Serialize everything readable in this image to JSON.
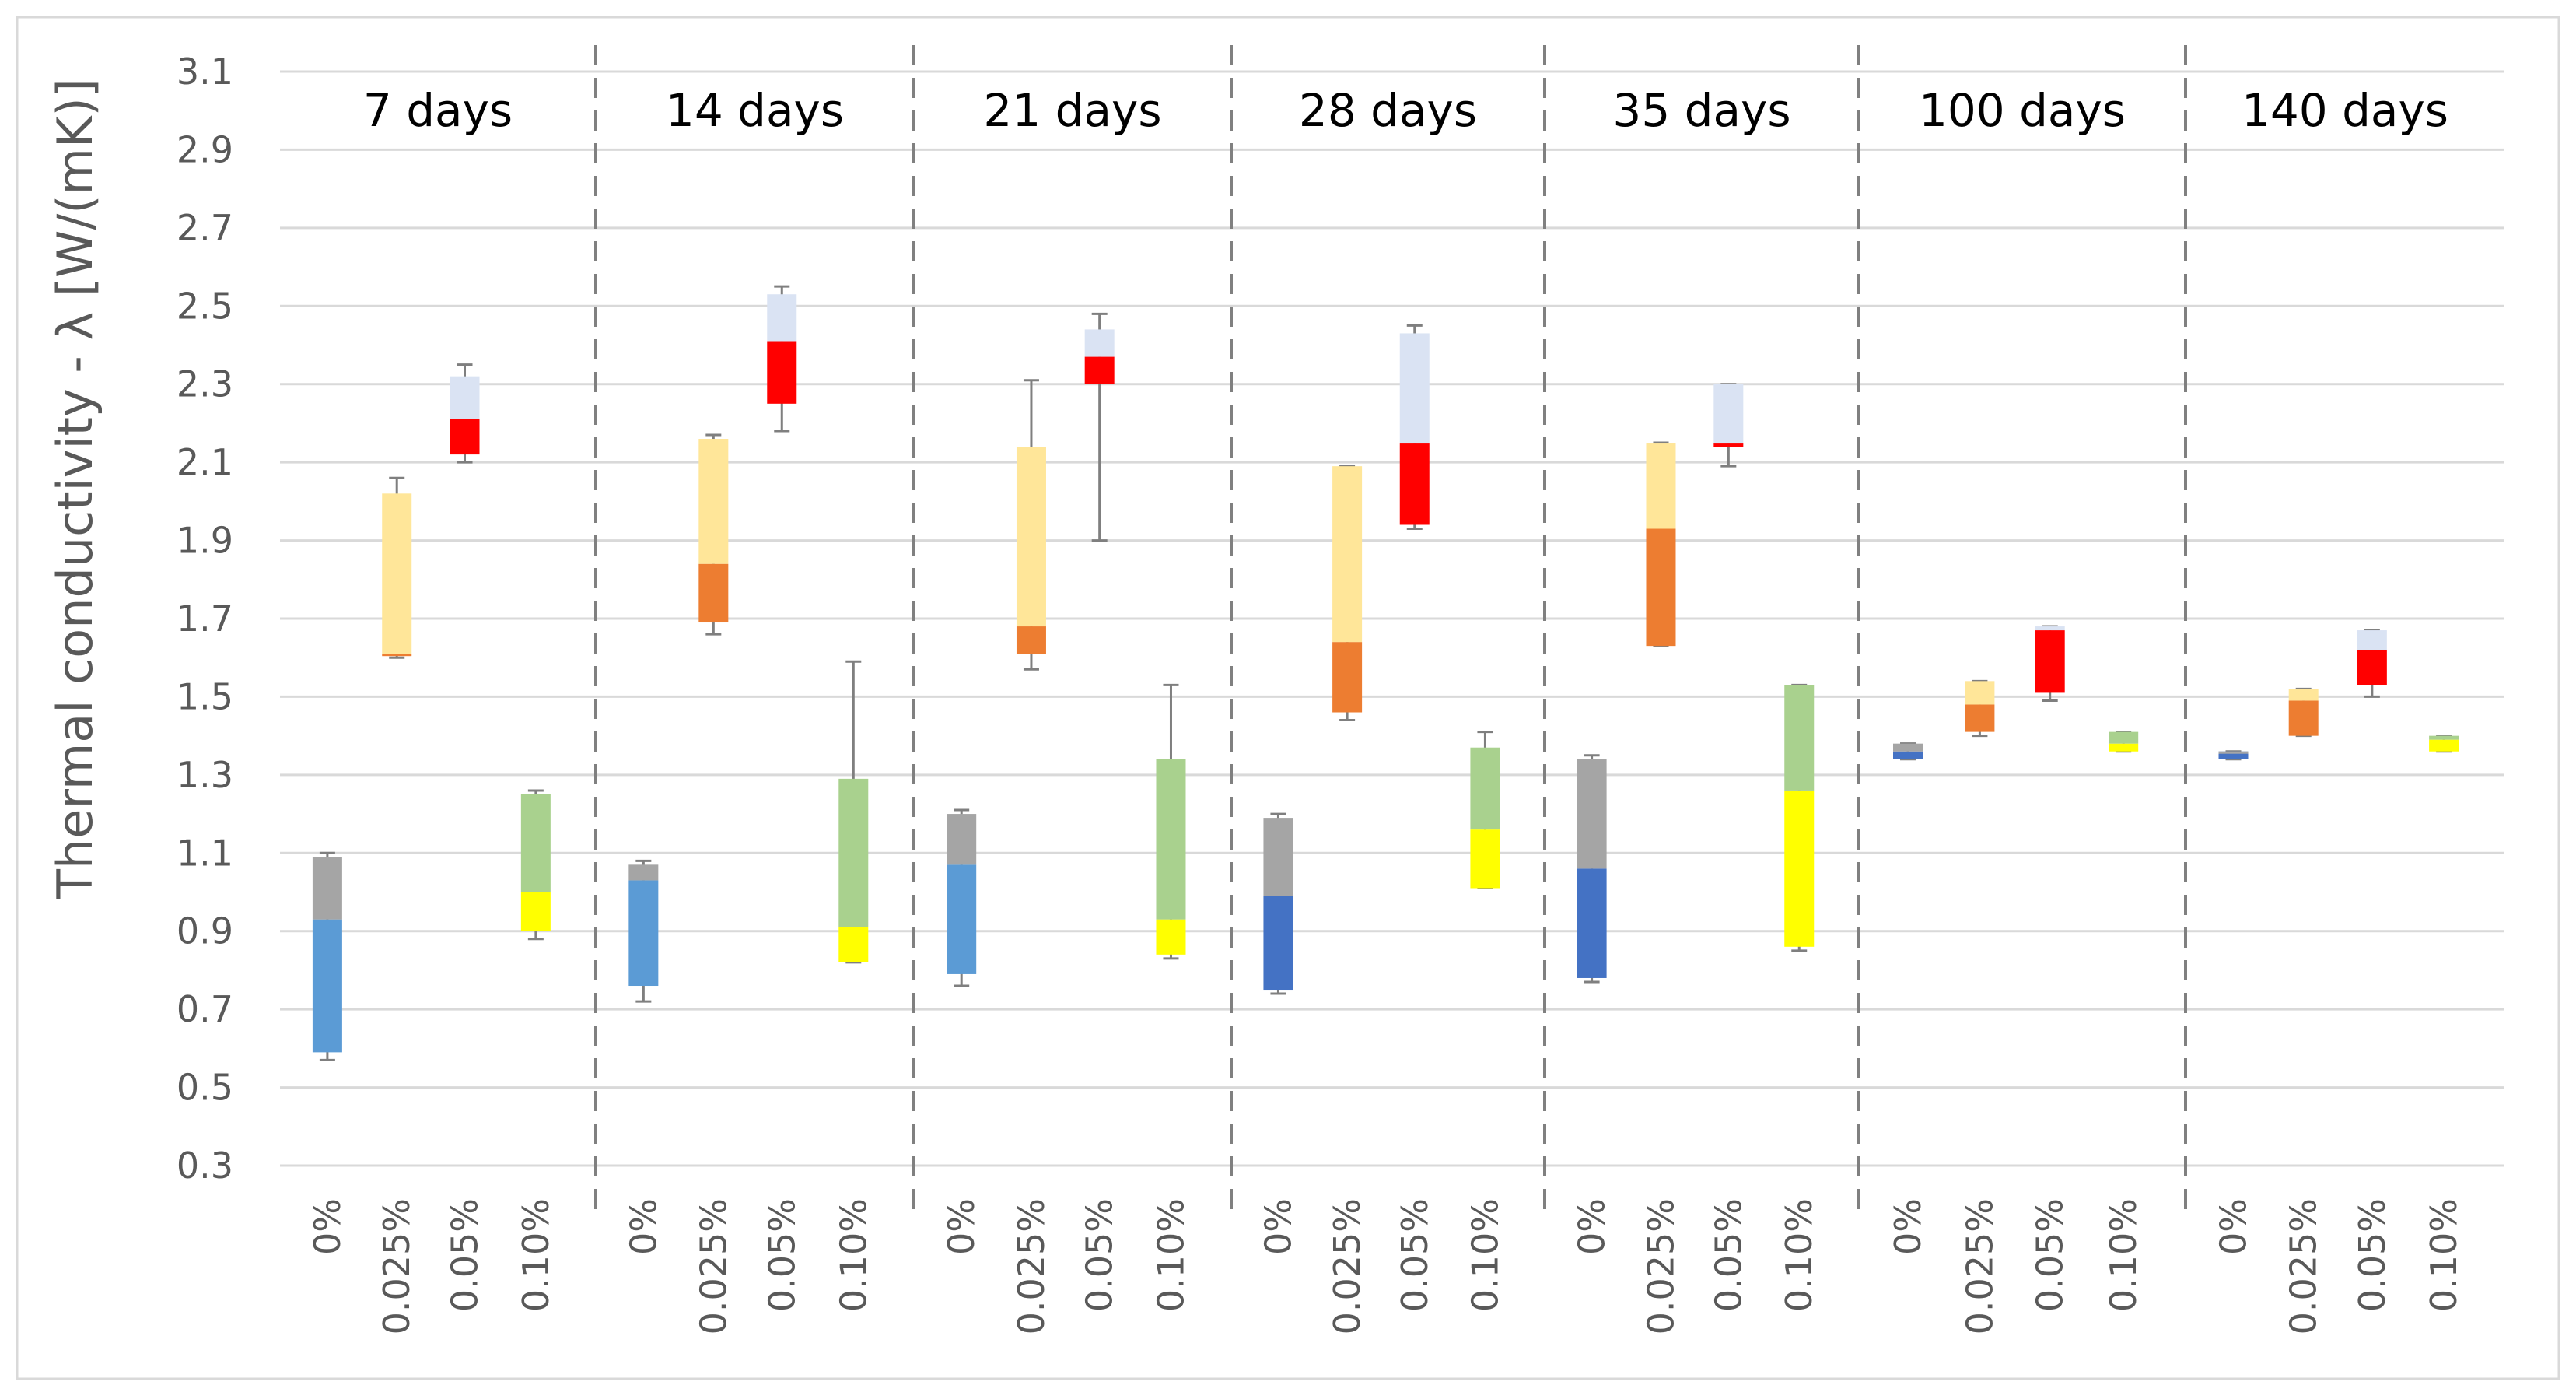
{
  "chart_data": {
    "type": "box",
    "ylabel": "Thermal conductivity  - λ [W/(mK)]",
    "ylim": [
      0.3,
      3.1
    ],
    "yticks": [
      "0.3",
      "0.5",
      "0.7",
      "0.9",
      "1.1",
      "1.3",
      "1.5",
      "1.7",
      "1.9",
      "2.1",
      "2.3",
      "2.5",
      "2.7",
      "2.9",
      "3.1"
    ],
    "grid": true,
    "categories": [
      "0%",
      "0.025%",
      "0.05%",
      "0.10%"
    ],
    "colors": {
      "0%": {
        "lower": "#5B9BD5",
        "upper": "#A5A5A5",
        "lower_late": "#4472C4"
      },
      "0.025%": {
        "lower": "#ED7D31",
        "upper": "#FFE699"
      },
      "0.05%": {
        "lower": "#FF0000",
        "upper": "#DAE3F3"
      },
      "0.10%": {
        "lower": "#FFFF00",
        "upper": "#A9D18E"
      },
      "whisker": "#7F7F7F",
      "gridline": "#D9D9D9",
      "divider": "#808080"
    },
    "groups": [
      {
        "label": "7 days",
        "boxes": [
          {
            "category": "0%",
            "min": 0.57,
            "q1": 0.59,
            "median": 0.93,
            "q3": 1.09,
            "max": 1.1
          },
          {
            "category": "0.025%",
            "min": 1.6,
            "q1": 1.61,
            "median": 1.61,
            "q3": 2.02,
            "max": 2.06
          },
          {
            "category": "0.05%",
            "min": 2.1,
            "q1": 2.12,
            "median": 2.21,
            "q3": 2.32,
            "max": 2.35
          },
          {
            "category": "0.10%",
            "min": 0.88,
            "q1": 0.9,
            "median": 1.0,
            "q3": 1.25,
            "max": 1.26
          }
        ]
      },
      {
        "label": "14 days",
        "boxes": [
          {
            "category": "0%",
            "min": 0.72,
            "q1": 0.76,
            "median": 1.03,
            "q3": 1.07,
            "max": 1.08
          },
          {
            "category": "0.025%",
            "min": 1.66,
            "q1": 1.69,
            "median": 1.84,
            "q3": 2.16,
            "max": 2.17
          },
          {
            "category": "0.05%",
            "min": 2.18,
            "q1": 2.25,
            "median": 2.41,
            "q3": 2.53,
            "max": 2.55
          },
          {
            "category": "0.10%",
            "min": 0.82,
            "q1": 0.82,
            "median": 0.91,
            "q3": 1.29,
            "max": 1.59
          }
        ]
      },
      {
        "label": "21 days",
        "boxes": [
          {
            "category": "0%",
            "min": 0.76,
            "q1": 0.79,
            "median": 1.07,
            "q3": 1.2,
            "max": 1.21
          },
          {
            "category": "0.025%",
            "min": 1.57,
            "q1": 1.61,
            "median": 1.68,
            "q3": 2.14,
            "max": 2.31
          },
          {
            "category": "0.05%",
            "min": 1.9,
            "q1": 2.3,
            "median": 2.37,
            "q3": 2.44,
            "max": 2.48
          },
          {
            "category": "0.10%",
            "min": 0.83,
            "q1": 0.84,
            "median": 0.93,
            "q3": 1.34,
            "max": 1.53
          }
        ]
      },
      {
        "label": "28 days",
        "boxes": [
          {
            "category": "0%",
            "min": 0.74,
            "q1": 0.75,
            "median": 0.99,
            "q3": 1.19,
            "max": 1.2
          },
          {
            "category": "0.025%",
            "min": 1.44,
            "q1": 1.46,
            "median": 1.64,
            "q3": 2.09,
            "max": 2.09
          },
          {
            "category": "0.05%",
            "min": 1.93,
            "q1": 1.94,
            "median": 2.15,
            "q3": 2.43,
            "max": 2.45
          },
          {
            "category": "0.10%",
            "min": 1.01,
            "q1": 1.01,
            "median": 1.16,
            "q3": 1.37,
            "max": 1.41
          }
        ]
      },
      {
        "label": "35 days",
        "boxes": [
          {
            "category": "0%",
            "min": 0.77,
            "q1": 0.78,
            "median": 1.06,
            "q3": 1.34,
            "max": 1.35
          },
          {
            "category": "0.025%",
            "min": 1.63,
            "q1": 1.63,
            "median": 1.93,
            "q3": 2.15,
            "max": 2.15
          },
          {
            "category": "0.05%",
            "min": 2.09,
            "q1": 2.14,
            "median": 2.15,
            "q3": 2.3,
            "max": 2.3
          },
          {
            "category": "0.10%",
            "min": 0.85,
            "q1": 0.86,
            "median": 1.26,
            "q3": 1.53,
            "max": 1.53
          }
        ]
      },
      {
        "label": "100 days",
        "boxes": [
          {
            "category": "0%",
            "min": 1.34,
            "q1": 1.34,
            "median": 1.36,
            "q3": 1.38,
            "max": 1.38
          },
          {
            "category": "0.025%",
            "min": 1.4,
            "q1": 1.41,
            "median": 1.48,
            "q3": 1.54,
            "max": 1.54
          },
          {
            "category": "0.05%",
            "min": 1.49,
            "q1": 1.51,
            "median": 1.67,
            "q3": 1.68,
            "max": 1.68
          },
          {
            "category": "0.10%",
            "min": 1.36,
            "q1": 1.36,
            "median": 1.38,
            "q3": 1.41,
            "max": 1.41
          }
        ]
      },
      {
        "label": "140 days",
        "boxes": [
          {
            "category": "0%",
            "min": 1.34,
            "q1": 1.34,
            "median": 1.36,
            "q3": 1.36,
            "max": 1.36
          },
          {
            "category": "0.025%",
            "min": 1.4,
            "q1": 1.4,
            "median": 1.49,
            "q3": 1.52,
            "max": 1.52
          },
          {
            "category": "0.05%",
            "min": 1.5,
            "q1": 1.53,
            "median": 1.62,
            "q3": 1.67,
            "max": 1.67
          },
          {
            "category": "0.10%",
            "min": 1.36,
            "q1": 1.36,
            "median": 1.39,
            "q3": 1.4,
            "max": 1.4
          }
        ]
      }
    ]
  }
}
